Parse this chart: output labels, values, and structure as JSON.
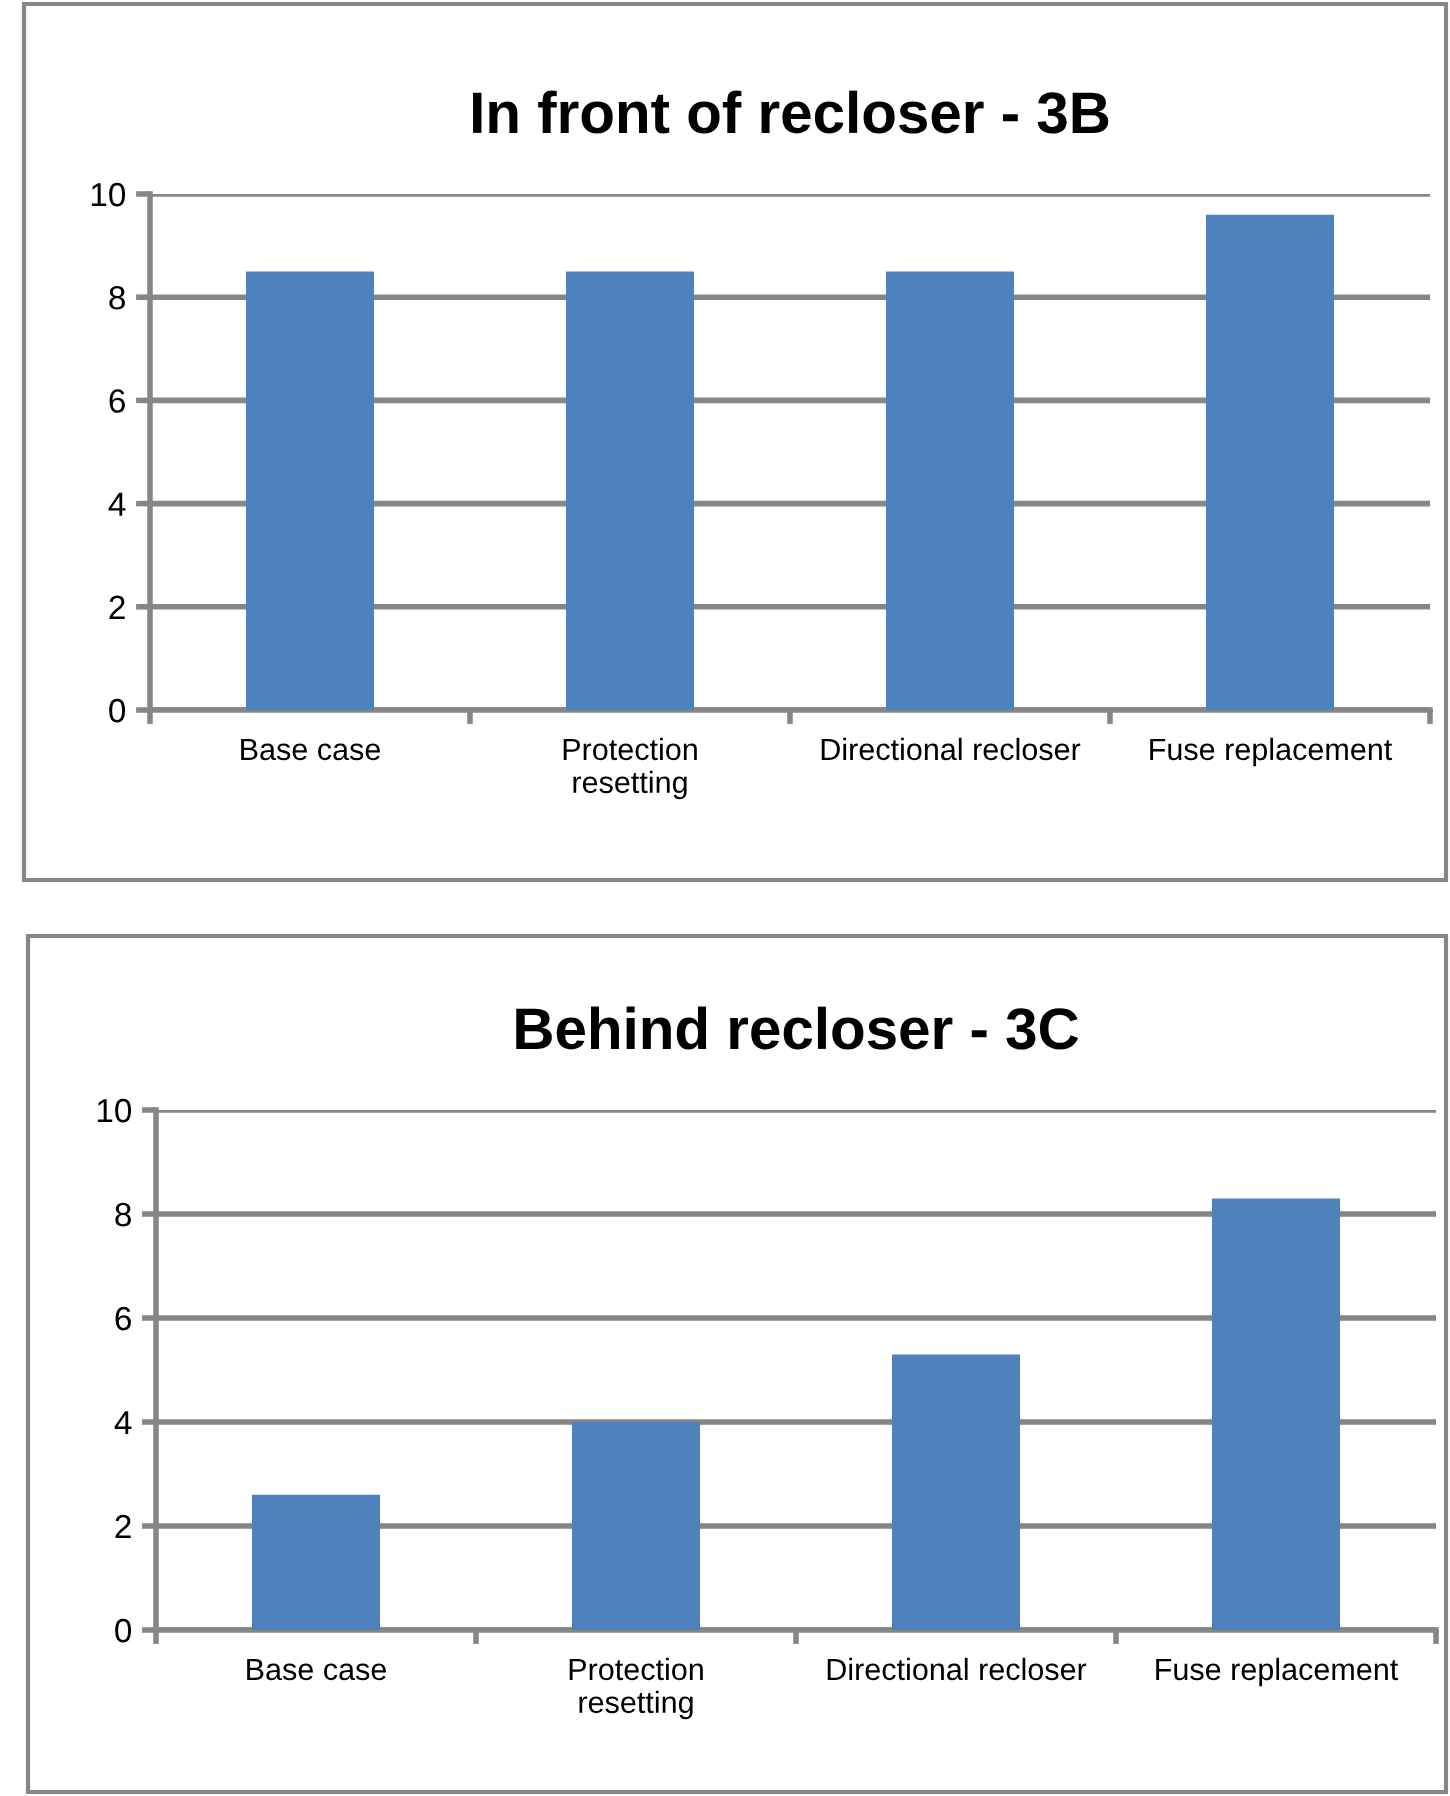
{
  "chart_data": [
    {
      "type": "bar",
      "title": "In front of recloser - 3B",
      "categories": [
        "Base case",
        "Protection\nresetting",
        "Directional recloser",
        "Fuse replacement"
      ],
      "values": [
        8.5,
        8.5,
        8.5,
        9.6
      ],
      "color": "#4f81bd",
      "ylim": [
        0,
        10
      ],
      "yticks": [
        0,
        2,
        4,
        6,
        8,
        10
      ],
      "grid": "y",
      "legend": false
    },
    {
      "type": "bar",
      "title": "Behind recloser - 3C",
      "categories": [
        "Base case",
        "Protection\nresetting",
        "Directional recloser",
        "Fuse replacement"
      ],
      "values": [
        2.6,
        4.0,
        5.3,
        8.3
      ],
      "color": "#4f81bd",
      "ylim": [
        0,
        10
      ],
      "yticks": [
        0,
        2,
        4,
        6,
        8,
        10
      ],
      "grid": "y",
      "legend": false
    }
  ]
}
